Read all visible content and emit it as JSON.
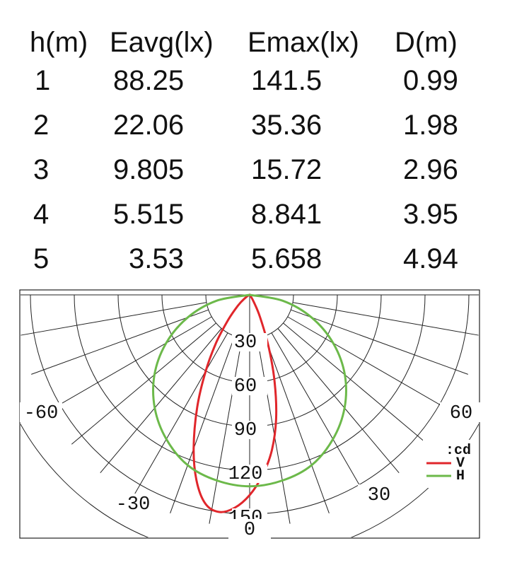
{
  "table": {
    "headers": [
      "h(m)",
      "Eavg(lx)",
      "Emax(lx)",
      "D(m)"
    ],
    "rows": [
      [
        "1",
        "88.25",
        "141.5",
        "0.99"
      ],
      [
        "2",
        "22.06",
        "35.36",
        "1.98"
      ],
      [
        "3",
        "9.805",
        "15.72",
        "2.96"
      ],
      [
        "4",
        "5.515",
        "8.841",
        "3.95"
      ],
      [
        "5",
        "3.53",
        "5.658",
        "4.94"
      ]
    ]
  },
  "chart_data": {
    "type": "polar",
    "radial_unit": ":cd",
    "radial_ticks": [
      30,
      60,
      90,
      120,
      150
    ],
    "radial_max": 180,
    "angle_labels": [
      "-60",
      "-30",
      "0",
      "30",
      "60"
    ],
    "angle_ticks": [
      -60,
      -30,
      0,
      30,
      60
    ],
    "grid": true,
    "legend_position": "right",
    "series": [
      {
        "name": "V",
        "color": "#e0262b",
        "points": [
          {
            "angle": -90,
            "r": 0
          },
          {
            "angle": -75,
            "r": 0
          },
          {
            "angle": -60,
            "r": 2
          },
          {
            "angle": -50,
            "r": 8
          },
          {
            "angle": -45,
            "r": 14
          },
          {
            "angle": -40,
            "r": 24
          },
          {
            "angle": -35,
            "r": 40
          },
          {
            "angle": -30,
            "r": 60
          },
          {
            "angle": -25,
            "r": 85
          },
          {
            "angle": -20,
            "r": 112
          },
          {
            "angle": -16,
            "r": 132
          },
          {
            "angle": -12,
            "r": 146
          },
          {
            "angle": -8,
            "r": 150
          },
          {
            "angle": -4,
            "r": 146
          },
          {
            "angle": 0,
            "r": 137
          },
          {
            "angle": 4,
            "r": 124
          },
          {
            "angle": 8,
            "r": 108
          },
          {
            "angle": 12,
            "r": 87
          },
          {
            "angle": 16,
            "r": 62
          },
          {
            "angle": 20,
            "r": 38
          },
          {
            "angle": 25,
            "r": 17
          },
          {
            "angle": 30,
            "r": 6
          },
          {
            "angle": 40,
            "r": 1
          },
          {
            "angle": 60,
            "r": 0
          },
          {
            "angle": 90,
            "r": 0
          }
        ]
      },
      {
        "name": "H",
        "color": "#6cb94a",
        "points": [
          {
            "angle": -90,
            "r": 0
          },
          {
            "angle": -80,
            "r": 23
          },
          {
            "angle": -70,
            "r": 45
          },
          {
            "angle": -60,
            "r": 66
          },
          {
            "angle": -50,
            "r": 85
          },
          {
            "angle": -40,
            "r": 101
          },
          {
            "angle": -30,
            "r": 114
          },
          {
            "angle": -20,
            "r": 124
          },
          {
            "angle": -10,
            "r": 129
          },
          {
            "angle": 0,
            "r": 131
          },
          {
            "angle": 10,
            "r": 129
          },
          {
            "angle": 20,
            "r": 124
          },
          {
            "angle": 30,
            "r": 114
          },
          {
            "angle": 40,
            "r": 101
          },
          {
            "angle": 50,
            "r": 85
          },
          {
            "angle": 60,
            "r": 66
          },
          {
            "angle": 70,
            "r": 45
          },
          {
            "angle": 80,
            "r": 23
          },
          {
            "angle": 90,
            "r": 0
          }
        ]
      }
    ]
  }
}
